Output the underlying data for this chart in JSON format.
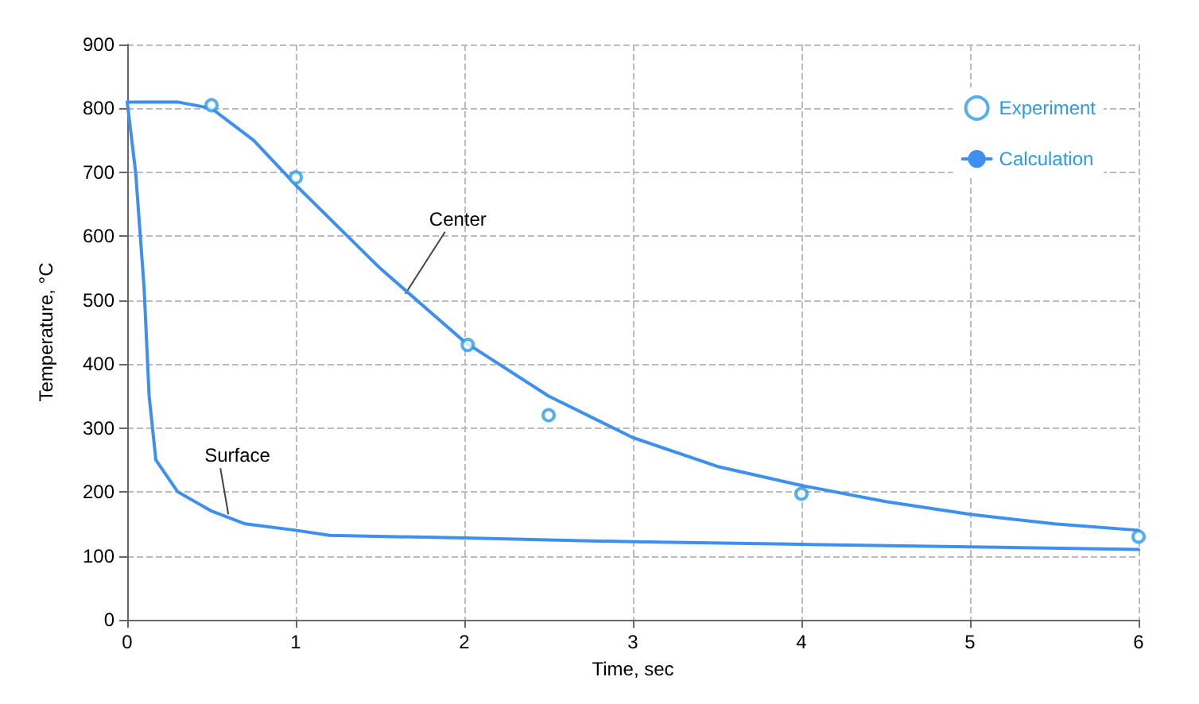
{
  "chart_data": {
    "type": "line",
    "xlabel": "Time, sec",
    "ylabel": "Temperature, °C",
    "xlim": [
      0,
      6
    ],
    "xticks": [
      0,
      1,
      2,
      3,
      4,
      5,
      6
    ],
    "ylim": [
      0,
      900
    ],
    "yticks": [
      0,
      100,
      200,
      300,
      400,
      500,
      600,
      700,
      800,
      900
    ],
    "grid": true,
    "legend": "top right",
    "line_style": "solid",
    "marker": "none",
    "series": [
      {
        "name": "Experiment",
        "type": "scatter",
        "marker": "circle",
        "color": "#2b9be8",
        "x": [
          0.5,
          1,
          2.02,
          2.5,
          4,
          6
        ],
        "values": [
          805,
          692,
          430,
          320,
          197,
          130
        ]
      },
      {
        "name": "Calculation",
        "color": "#3d8ff0",
        "x": [
          0,
          0.3,
          0.5,
          0.75,
          1,
          1.5,
          2,
          2.5,
          3,
          3.5,
          4,
          4.5,
          5,
          5.5,
          6
        ],
        "values": [
          810,
          810,
          800,
          750,
          680,
          550,
          435,
          350,
          285,
          240,
          210,
          185,
          165,
          150,
          140
        ]
      },
      {
        "color": "#3d8ff0",
        "x": [
          0,
          0.05,
          0.1,
          0.13,
          0.17,
          0.3,
          0.5,
          0.7,
          1,
          1.2,
          2,
          3,
          4,
          5,
          6
        ],
        "values": [
          810,
          700,
          520,
          350,
          250,
          200,
          170,
          150,
          140,
          132,
          128,
          122,
          118,
          114,
          110
        ]
      }
    ],
    "annotations": [
      {
        "text": "Center",
        "x": 1.65,
        "y": 510
      },
      {
        "text": "Surface",
        "x": 0.6,
        "y": 165
      }
    ]
  }
}
